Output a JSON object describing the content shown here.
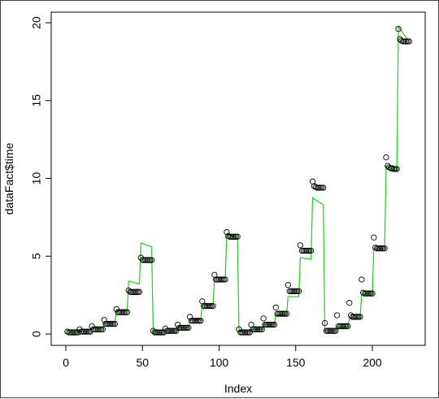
{
  "chart_data": {
    "type": "scatter",
    "xlabel": "Index",
    "ylabel": "dataFact$time",
    "xlim": [
      0,
      224
    ],
    "ylim": [
      0,
      20
    ],
    "x_ticks": [
      "0",
      "50",
      "100",
      "150",
      "200"
    ],
    "y_ticks": [
      "0",
      "5",
      "10",
      "15",
      "20"
    ],
    "grid": false,
    "colors": {
      "points": "#000000",
      "line": "#22cc22"
    },
    "series": [
      {
        "type": "points",
        "points": [
          [
            1,
            0.15
          ],
          [
            2,
            0.1
          ],
          [
            3,
            0.1
          ],
          [
            4,
            0.1
          ],
          [
            5,
            0.1
          ],
          [
            6,
            0.1
          ],
          [
            7,
            0.1
          ],
          [
            8,
            0.1
          ],
          [
            9,
            0.3
          ],
          [
            10,
            0.15
          ],
          [
            11,
            0.15
          ],
          [
            12,
            0.15
          ],
          [
            13,
            0.15
          ],
          [
            14,
            0.15
          ],
          [
            15,
            0.15
          ],
          [
            16,
            0.15
          ],
          [
            17,
            0.5
          ],
          [
            18,
            0.3
          ],
          [
            19,
            0.3
          ],
          [
            20,
            0.3
          ],
          [
            21,
            0.3
          ],
          [
            22,
            0.3
          ],
          [
            23,
            0.3
          ],
          [
            24,
            0.3
          ],
          [
            25,
            0.9
          ],
          [
            26,
            0.65
          ],
          [
            27,
            0.65
          ],
          [
            28,
            0.65
          ],
          [
            29,
            0.65
          ],
          [
            30,
            0.65
          ],
          [
            31,
            0.65
          ],
          [
            32,
            0.65
          ],
          [
            33,
            1.6
          ],
          [
            34,
            1.4
          ],
          [
            35,
            1.4
          ],
          [
            36,
            1.4
          ],
          [
            37,
            1.4
          ],
          [
            38,
            1.4
          ],
          [
            39,
            1.4
          ],
          [
            40,
            1.4
          ],
          [
            41,
            2.8
          ],
          [
            42,
            2.7
          ],
          [
            43,
            2.7
          ],
          [
            44,
            2.7
          ],
          [
            45,
            2.7
          ],
          [
            46,
            2.7
          ],
          [
            47,
            2.7
          ],
          [
            48,
            2.7
          ],
          [
            49,
            4.9
          ],
          [
            50,
            4.75
          ],
          [
            51,
            4.75
          ],
          [
            52,
            4.75
          ],
          [
            53,
            4.75
          ],
          [
            54,
            4.75
          ],
          [
            55,
            4.75
          ],
          [
            56,
            4.75
          ],
          [
            57,
            0.2
          ],
          [
            58,
            0.1
          ],
          [
            59,
            0.1
          ],
          [
            60,
            0.1
          ],
          [
            61,
            0.1
          ],
          [
            62,
            0.1
          ],
          [
            63,
            0.1
          ],
          [
            64,
            0.1
          ],
          [
            65,
            0.35
          ],
          [
            66,
            0.2
          ],
          [
            67,
            0.2
          ],
          [
            68,
            0.2
          ],
          [
            69,
            0.2
          ],
          [
            70,
            0.2
          ],
          [
            71,
            0.2
          ],
          [
            72,
            0.2
          ],
          [
            73,
            0.6
          ],
          [
            74,
            0.4
          ],
          [
            75,
            0.4
          ],
          [
            76,
            0.4
          ],
          [
            77,
            0.4
          ],
          [
            78,
            0.4
          ],
          [
            79,
            0.4
          ],
          [
            80,
            0.4
          ],
          [
            81,
            1.1
          ],
          [
            82,
            0.85
          ],
          [
            83,
            0.85
          ],
          [
            84,
            0.85
          ],
          [
            85,
            0.85
          ],
          [
            86,
            0.85
          ],
          [
            87,
            0.85
          ],
          [
            88,
            0.85
          ],
          [
            89,
            2.1
          ],
          [
            90,
            1.8
          ],
          [
            91,
            1.8
          ],
          [
            92,
            1.8
          ],
          [
            93,
            1.8
          ],
          [
            94,
            1.8
          ],
          [
            95,
            1.8
          ],
          [
            96,
            1.8
          ],
          [
            97,
            3.8
          ],
          [
            98,
            3.5
          ],
          [
            99,
            3.5
          ],
          [
            100,
            3.5
          ],
          [
            101,
            3.5
          ],
          [
            102,
            3.5
          ],
          [
            103,
            3.5
          ],
          [
            104,
            3.5
          ],
          [
            105,
            6.55
          ],
          [
            106,
            6.3
          ],
          [
            107,
            6.25
          ],
          [
            108,
            6.25
          ],
          [
            109,
            6.25
          ],
          [
            110,
            6.25
          ],
          [
            111,
            6.25
          ],
          [
            112,
            6.25
          ],
          [
            113,
            0.3
          ],
          [
            114,
            0.1
          ],
          [
            115,
            0.1
          ],
          [
            116,
            0.1
          ],
          [
            117,
            0.1
          ],
          [
            118,
            0.1
          ],
          [
            119,
            0.1
          ],
          [
            120,
            0.1
          ],
          [
            121,
            0.6
          ],
          [
            122,
            0.3
          ],
          [
            123,
            0.3
          ],
          [
            124,
            0.3
          ],
          [
            125,
            0.3
          ],
          [
            126,
            0.3
          ],
          [
            127,
            0.3
          ],
          [
            128,
            0.3
          ],
          [
            129,
            1.0
          ],
          [
            130,
            0.6
          ],
          [
            131,
            0.6
          ],
          [
            132,
            0.6
          ],
          [
            133,
            0.6
          ],
          [
            134,
            0.6
          ],
          [
            135,
            0.6
          ],
          [
            136,
            0.6
          ],
          [
            137,
            1.7
          ],
          [
            138,
            1.3
          ],
          [
            139,
            1.3
          ],
          [
            140,
            1.3
          ],
          [
            141,
            1.3
          ],
          [
            142,
            1.3
          ],
          [
            143,
            1.3
          ],
          [
            144,
            1.3
          ],
          [
            145,
            3.15
          ],
          [
            146,
            2.75
          ],
          [
            147,
            2.75
          ],
          [
            148,
            2.75
          ],
          [
            149,
            2.75
          ],
          [
            150,
            2.75
          ],
          [
            151,
            2.75
          ],
          [
            152,
            2.75
          ],
          [
            153,
            5.7
          ],
          [
            154,
            5.35
          ],
          [
            155,
            5.35
          ],
          [
            156,
            5.35
          ],
          [
            157,
            5.35
          ],
          [
            158,
            5.35
          ],
          [
            159,
            5.35
          ],
          [
            160,
            5.35
          ],
          [
            161,
            9.8
          ],
          [
            162,
            9.5
          ],
          [
            163,
            9.45
          ],
          [
            164,
            9.4
          ],
          [
            165,
            9.4
          ],
          [
            166,
            9.4
          ],
          [
            167,
            9.4
          ],
          [
            168,
            9.4
          ],
          [
            169,
            0.7
          ],
          [
            170,
            0.2
          ],
          [
            171,
            0.2
          ],
          [
            172,
            0.2
          ],
          [
            173,
            0.2
          ],
          [
            174,
            0.2
          ],
          [
            175,
            0.2
          ],
          [
            176,
            0.2
          ],
          [
            177,
            1.2
          ],
          [
            178,
            0.5
          ],
          [
            179,
            0.5
          ],
          [
            180,
            0.5
          ],
          [
            181,
            0.5
          ],
          [
            182,
            0.5
          ],
          [
            183,
            0.5
          ],
          [
            184,
            0.5
          ],
          [
            185,
            2.0
          ],
          [
            186,
            1.2
          ],
          [
            187,
            1.1
          ],
          [
            188,
            1.1
          ],
          [
            189,
            1.1
          ],
          [
            190,
            1.1
          ],
          [
            191,
            1.1
          ],
          [
            192,
            1.1
          ],
          [
            193,
            3.5
          ],
          [
            194,
            2.65
          ],
          [
            195,
            2.6
          ],
          [
            196,
            2.6
          ],
          [
            197,
            2.6
          ],
          [
            198,
            2.6
          ],
          [
            199,
            2.6
          ],
          [
            200,
            2.6
          ],
          [
            201,
            6.2
          ],
          [
            202,
            5.55
          ],
          [
            203,
            5.5
          ],
          [
            204,
            5.5
          ],
          [
            205,
            5.5
          ],
          [
            206,
            5.5
          ],
          [
            207,
            5.5
          ],
          [
            208,
            5.5
          ],
          [
            209,
            11.35
          ],
          [
            210,
            10.8
          ],
          [
            211,
            10.7
          ],
          [
            212,
            10.65
          ],
          [
            213,
            10.65
          ],
          [
            214,
            10.6
          ],
          [
            215,
            10.6
          ],
          [
            216,
            10.6
          ],
          [
            217,
            19.6
          ],
          [
            218,
            18.95
          ],
          [
            219,
            18.85
          ],
          [
            220,
            18.8
          ],
          [
            221,
            18.8
          ],
          [
            222,
            18.8
          ],
          [
            223,
            18.8
          ],
          [
            224,
            18.8
          ]
        ]
      },
      {
        "type": "line",
        "points": [
          [
            1,
            0.1
          ],
          [
            8,
            0.1
          ],
          [
            9,
            0.2
          ],
          [
            16,
            0.2
          ],
          [
            17,
            0.35
          ],
          [
            24,
            0.35
          ],
          [
            25,
            0.7
          ],
          [
            32,
            0.7
          ],
          [
            33,
            1.5
          ],
          [
            40,
            1.5
          ],
          [
            41,
            3.4
          ],
          [
            48,
            3.2
          ],
          [
            49,
            5.85
          ],
          [
            56,
            5.6
          ],
          [
            57,
            0.1
          ],
          [
            64,
            0.1
          ],
          [
            65,
            0.2
          ],
          [
            72,
            0.2
          ],
          [
            73,
            0.4
          ],
          [
            80,
            0.4
          ],
          [
            81,
            0.9
          ],
          [
            88,
            0.9
          ],
          [
            89,
            1.85
          ],
          [
            96,
            1.85
          ],
          [
            97,
            3.6
          ],
          [
            104,
            3.6
          ],
          [
            105,
            6.4
          ],
          [
            112,
            6.2
          ],
          [
            113,
            0.15
          ],
          [
            120,
            0.15
          ],
          [
            121,
            0.3
          ],
          [
            128,
            0.3
          ],
          [
            129,
            0.6
          ],
          [
            136,
            0.6
          ],
          [
            137,
            1.25
          ],
          [
            144,
            1.25
          ],
          [
            145,
            2.4
          ],
          [
            152,
            2.4
          ],
          [
            153,
            4.9
          ],
          [
            160,
            4.8
          ],
          [
            161,
            8.75
          ],
          [
            168,
            8.3
          ],
          [
            169,
            0.2
          ],
          [
            176,
            0.2
          ],
          [
            177,
            0.45
          ],
          [
            184,
            0.45
          ],
          [
            185,
            1.0
          ],
          [
            192,
            1.0
          ],
          [
            193,
            2.55
          ],
          [
            200,
            2.55
          ],
          [
            201,
            5.5
          ],
          [
            208,
            5.5
          ],
          [
            209,
            10.8
          ],
          [
            216,
            10.5
          ],
          [
            217,
            19.75
          ],
          [
            224,
            18.8
          ]
        ]
      }
    ]
  }
}
